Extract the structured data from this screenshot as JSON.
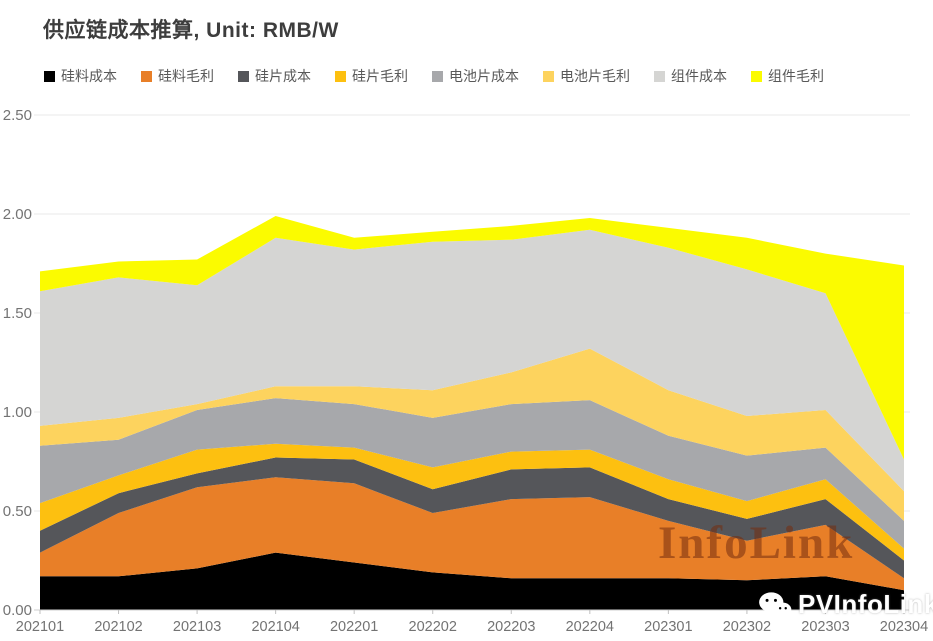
{
  "header": {
    "title": "供应链成本推算, Unit: RMB/W"
  },
  "legend": {
    "items": [
      {
        "key": "poly-cost",
        "label": "硅料成本",
        "color": "#000000"
      },
      {
        "key": "poly-margin",
        "label": "硅料毛利",
        "color": "#e87f28"
      },
      {
        "key": "wafer-cost",
        "label": "硅片成本",
        "color": "#55565a"
      },
      {
        "key": "wafer-margin",
        "label": "硅片毛利",
        "color": "#fdc010"
      },
      {
        "key": "cell-cost",
        "label": "电池片成本",
        "color": "#a7a8ab"
      },
      {
        "key": "cell-margin",
        "label": "电池片毛利",
        "color": "#fdd35e"
      },
      {
        "key": "module-cost",
        "label": "组件成本",
        "color": "#d5d5d3"
      },
      {
        "key": "module-margin",
        "label": "组件毛利",
        "color": "#fbfb00"
      }
    ]
  },
  "chart_data": {
    "type": "area",
    "stacked": true,
    "title": "供应链成本推算, Unit: RMB/W",
    "xlabel": "",
    "ylabel": "",
    "ylim": [
      0,
      2.5
    ],
    "yticks": [
      "0.00",
      "0.50",
      "1.00",
      "1.50",
      "2.00",
      "2.50"
    ],
    "ytick_values": [
      0,
      0.5,
      1.0,
      1.5,
      2.0,
      2.5
    ],
    "grid": true,
    "legend_position": "top",
    "categories": [
      "202101",
      "202102",
      "202103",
      "202104",
      "202201",
      "202202",
      "202203",
      "202204",
      "202301",
      "202302",
      "202303",
      "202304"
    ],
    "series": [
      {
        "key": "poly-cost",
        "name": "硅料成本",
        "color": "#000000",
        "values": [
          0.17,
          0.17,
          0.21,
          0.29,
          0.24,
          0.19,
          0.16,
          0.16,
          0.16,
          0.15,
          0.17,
          0.1
        ]
      },
      {
        "key": "poly-margin",
        "name": "硅料毛利",
        "color": "#e87f28",
        "values": [
          0.12,
          0.32,
          0.41,
          0.38,
          0.4,
          0.3,
          0.4,
          0.41,
          0.29,
          0.2,
          0.26,
          0.06
        ]
      },
      {
        "key": "wafer-cost",
        "name": "硅片成本",
        "color": "#55565a",
        "values": [
          0.11,
          0.1,
          0.07,
          0.1,
          0.12,
          0.12,
          0.15,
          0.15,
          0.11,
          0.11,
          0.13,
          0.09
        ]
      },
      {
        "key": "wafer-margin",
        "name": "硅片毛利",
        "color": "#fdc010",
        "values": [
          0.14,
          0.09,
          0.12,
          0.07,
          0.06,
          0.11,
          0.09,
          0.09,
          0.1,
          0.09,
          0.1,
          0.06
        ]
      },
      {
        "key": "cell-cost",
        "name": "电池片成本",
        "color": "#a7a8ab",
        "values": [
          0.29,
          0.18,
          0.2,
          0.23,
          0.22,
          0.25,
          0.24,
          0.25,
          0.22,
          0.23,
          0.16,
          0.14
        ]
      },
      {
        "key": "cell-margin",
        "name": "电池片毛利",
        "color": "#fdd35e",
        "values": [
          0.1,
          0.11,
          0.03,
          0.06,
          0.09,
          0.14,
          0.16,
          0.26,
          0.23,
          0.2,
          0.19,
          0.15
        ]
      },
      {
        "key": "module-cost",
        "name": "组件成本",
        "color": "#d5d5d3",
        "values": [
          0.68,
          0.71,
          0.6,
          0.75,
          0.69,
          0.75,
          0.67,
          0.6,
          0.72,
          0.74,
          0.59,
          0.16
        ]
      },
      {
        "key": "module-margin",
        "name": "组件毛利",
        "color": "#fbfb00",
        "values": [
          0.1,
          0.08,
          0.13,
          0.11,
          0.06,
          0.05,
          0.07,
          0.06,
          0.1,
          0.16,
          0.2,
          0.98
        ]
      }
    ]
  },
  "watermarks": {
    "plot": "InfoLink",
    "brand": "PVInfoLink"
  },
  "colors": {
    "background": "#ffffff",
    "grid": "#e9e9e9",
    "axis": "#cfcfcf",
    "tick": "#bfbfbf",
    "title_text": "#3d3d3d",
    "axis_label": "#737373",
    "legend_label": "#595959"
  }
}
